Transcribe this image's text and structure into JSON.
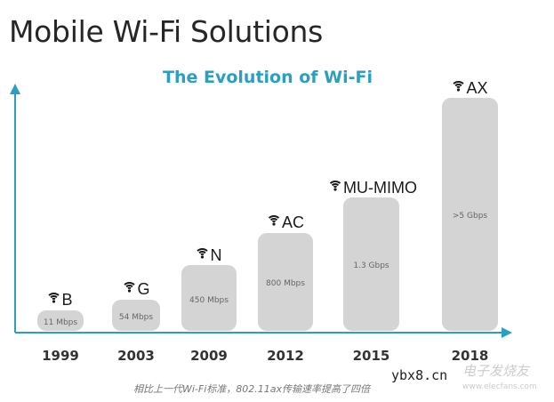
{
  "title": "Mobile Wi-Fi Solutions",
  "caption": "相比上一代Wi-Fi标准，802.11ax传输速率提高了四倍",
  "watermark": {
    "site": "ybx8.cn",
    "brand": "电子发烧友",
    "url": "www.elecfans.com"
  },
  "colors": {
    "axis": "#2a9fc2",
    "bar": "#d4d4d4",
    "subtitle": "#2a9fc2"
  },
  "chart_data": {
    "type": "bar",
    "title": "The Evolution of Wi-Fi",
    "categories": [
      "1999",
      "2003",
      "2009",
      "2012",
      "2015",
      "2018"
    ],
    "standards": [
      "B",
      "G",
      "N",
      "AC",
      "MU-MIMO",
      "AX"
    ],
    "value_labels": [
      "11 Mbps",
      "54 Mbps",
      "450 Mbps",
      "800 Mbps",
      "1.3 Gbps",
      ">5 Gbps"
    ],
    "icon": "wifi-icon",
    "grid": false,
    "xlabel": "",
    "ylabel": ""
  }
}
